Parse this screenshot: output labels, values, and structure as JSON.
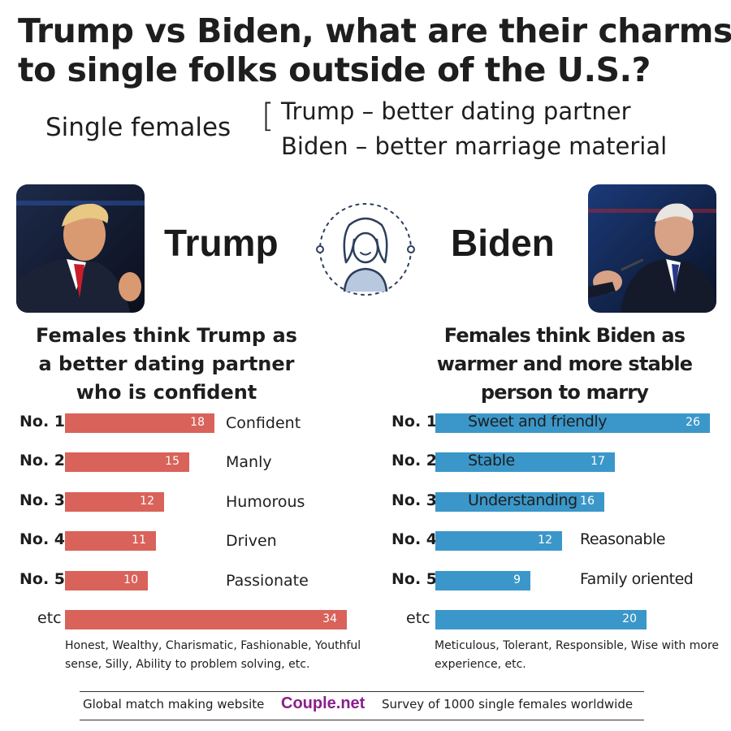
{
  "title": {
    "line1": "Trump vs Biden, what are their charms",
    "line2": "to single folks outside of the U.S.?"
  },
  "subtitle": {
    "group": "Single females",
    "bracket": "[",
    "trump_line": "Trump – better dating partner",
    "biden_line": "Biden – better marriage material"
  },
  "candidates": {
    "trump": {
      "name": "Trump",
      "color": "#d9625a"
    },
    "biden": {
      "name": "Biden",
      "color": "#3b97c9"
    }
  },
  "icons": {
    "center": "female-avatar-icon",
    "trump_photo": "trump-photo",
    "biden_photo": "biden-photo"
  },
  "headings": {
    "trump": [
      "Females think Trump as",
      "a better dating partner",
      "who is confident"
    ],
    "biden": [
      "Females think Biden as",
      "warmer and more stable",
      "person to marry"
    ]
  },
  "chart_data": [
    {
      "type": "bar",
      "orientation": "horizontal",
      "categories": [
        "No. 1",
        "No. 2",
        "No. 3",
        "No. 4",
        "No. 5",
        "etc"
      ],
      "labels": [
        "Confident",
        "Manly",
        "Humorous",
        "Driven",
        "Passionate",
        ""
      ],
      "values": [
        18,
        15,
        12,
        11,
        10,
        34
      ],
      "color": "#d9625a",
      "note": "Honest, Wealthy, Charismatic, Fashionable, Youthful sense, Silly, Ability to problem solving, etc."
    },
    {
      "type": "bar",
      "orientation": "horizontal",
      "categories": [
        "No. 1",
        "No. 2",
        "No. 3",
        "No. 4",
        "No. 5",
        "etc"
      ],
      "labels": [
        "Sweet and friendly",
        "Stable",
        "Understanding",
        "Reasonable",
        "Family oriented",
        ""
      ],
      "values": [
        26,
        17,
        16,
        12,
        9,
        20
      ],
      "color": "#3b97c9",
      "note": "Meticulous, Tolerant, Responsible, Wise with more experience, etc."
    }
  ],
  "footer": {
    "left": "Global match making website",
    "brand": "Couple.net",
    "right": "Survey of 1000 single females worldwide"
  }
}
